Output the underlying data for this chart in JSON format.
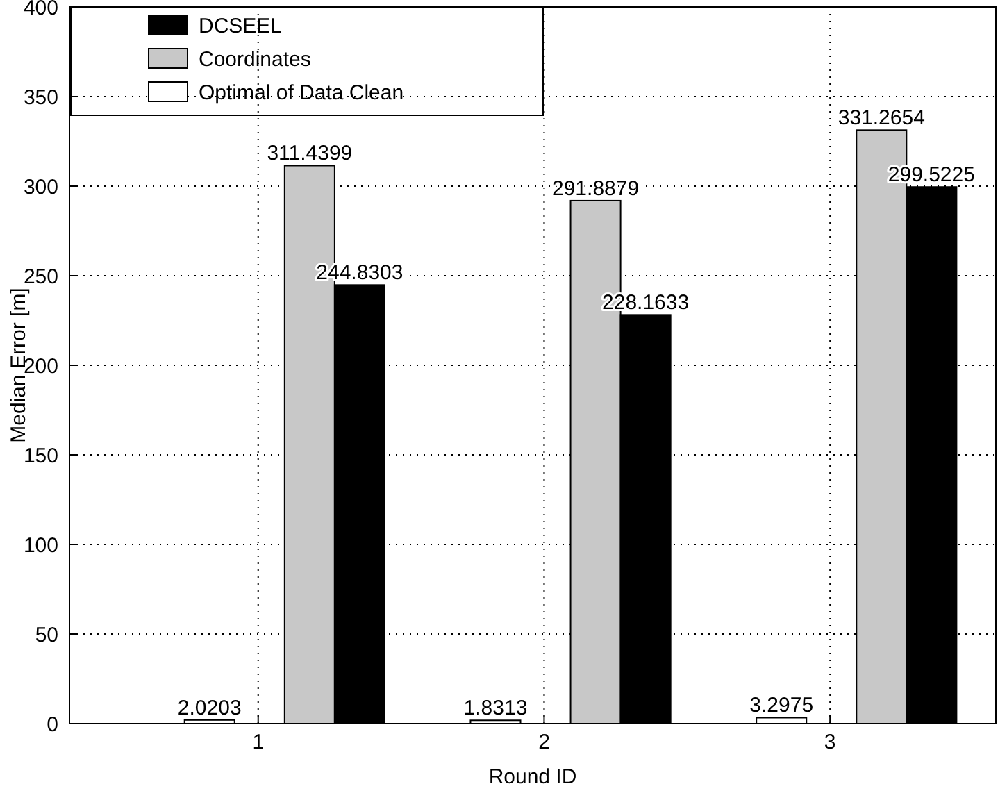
{
  "chart_data": {
    "type": "bar",
    "xlabel": "Round ID",
    "ylabel": "Median Error [m]",
    "categories": [
      "1",
      "2",
      "3"
    ],
    "series": [
      {
        "name": "Optimal of Data Clean",
        "color": "#ffffff",
        "values": [
          2.0203,
          1.8313,
          3.2975
        ]
      },
      {
        "name": "Coordinates",
        "color": "#c8c8c8",
        "values": [
          311.4399,
          291.8879,
          331.2654
        ]
      },
      {
        "name": "DCSEEL",
        "color": "#000000",
        "values": [
          244.8303,
          228.1633,
          299.5225
        ]
      }
    ],
    "ylim": [
      0,
      400
    ],
    "yticks": [
      0,
      50,
      100,
      150,
      200,
      250,
      300,
      350,
      400
    ],
    "grid": true,
    "legend": "top left",
    "data_labels": true
  }
}
